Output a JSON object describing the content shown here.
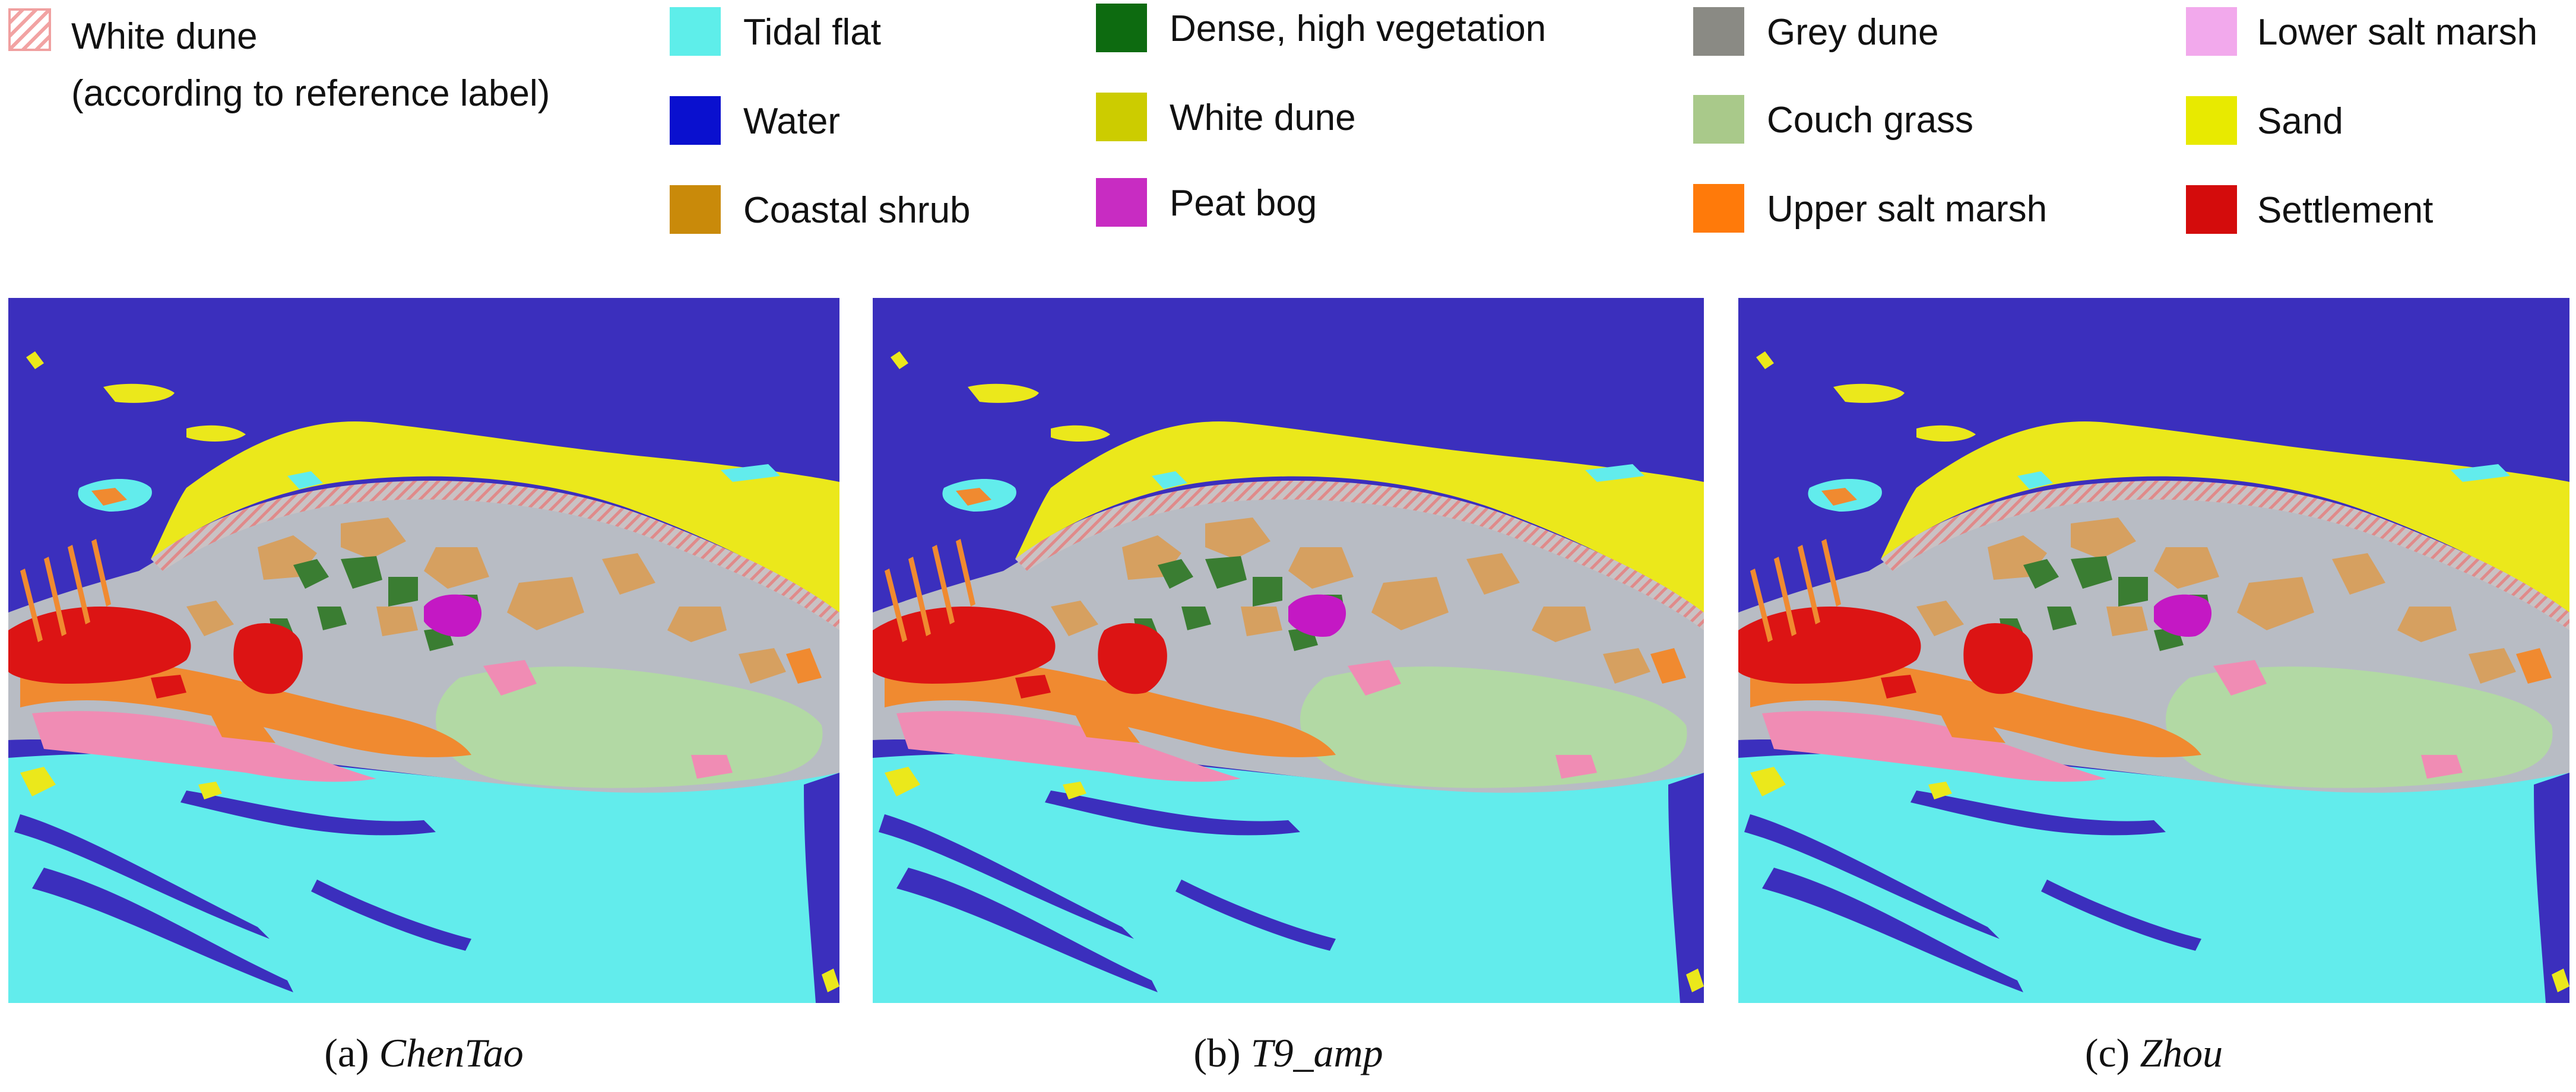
{
  "legend": {
    "hatched": {
      "label_line1": "White dune",
      "label_line2": "(according to reference label)",
      "color": "#f2a3a3"
    },
    "items": [
      {
        "label": "Tidal flat",
        "color": "#5eeeea"
      },
      {
        "label": "Water",
        "color": "#0a10cf"
      },
      {
        "label": "Coastal shrub",
        "color": "#c98a0a"
      },
      {
        "label": "Dense, high vegetation",
        "color": "#0d6b10"
      },
      {
        "label": "White dune",
        "color": "#cccc00"
      },
      {
        "label": "Peat bog",
        "color": "#c82cc2"
      },
      {
        "label": "Grey dune",
        "color": "#8a8a84"
      },
      {
        "label": "Couch grass",
        "color": "#a9c98a"
      },
      {
        "label": "Upper salt marsh",
        "color": "#ff7a0a"
      },
      {
        "label": "Lower salt marsh",
        "color": "#f2a9ec"
      },
      {
        "label": "Sand",
        "color": "#e8ea00"
      },
      {
        "label": "Settlement",
        "color": "#d40c0c"
      }
    ]
  },
  "map_colors": {
    "water": "#3b2fbd",
    "tidal": "#62ecec",
    "sand": "#ebe81b",
    "grey": "#b8bcc4",
    "shrub": "#d6a060",
    "dense": "#3a7d32",
    "pink": "#f08cb4",
    "couch": "#b2d9a4",
    "orange": "#f08a30",
    "red": "#dc1414",
    "bog": "#c418c4"
  },
  "panels": [
    {
      "prefix": "(a) ",
      "method": "ChenTao"
    },
    {
      "prefix": "(b) ",
      "method": "T9_amp"
    },
    {
      "prefix": "(c) ",
      "method": "Zhou"
    }
  ]
}
